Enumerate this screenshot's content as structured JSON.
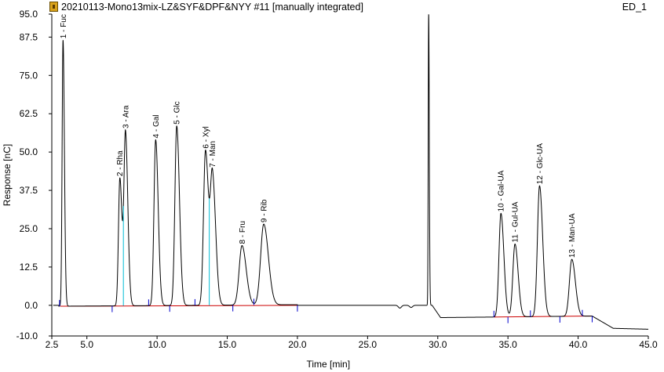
{
  "header": {
    "title": "20210113-Mono13mix-LZ&SYF&DPF&NYY #11 [manually integrated]",
    "channel": "ED_1"
  },
  "icons": {
    "app": "chromatogram-icon"
  },
  "colors": {
    "trace": "#000000",
    "baseline": "#cc0000",
    "marker": "#0000cc",
    "split": "#00bcd4"
  },
  "chart_data": {
    "type": "line",
    "xlabel": "Time [min]",
    "ylabel": "Response [nC]",
    "xlim": [
      2.5,
      45.0
    ],
    "ylim": [
      -10.0,
      95.0
    ],
    "x_ticks": [
      "2.5",
      "5.0",
      "10.0",
      "15.0",
      "20.0",
      "25.0",
      "30.0",
      "35.0",
      "40.0",
      "45.0"
    ],
    "x_tick_values": [
      2.5,
      5.0,
      10.0,
      15.0,
      20.0,
      25.0,
      30.0,
      35.0,
      40.0,
      45.0
    ],
    "y_ticks": [
      "95.0",
      "87.5",
      "75.0",
      "62.5",
      "50.0",
      "37.5",
      "25.0",
      "12.5",
      "0.0",
      "-10.0"
    ],
    "y_tick_values": [
      95.0,
      87.5,
      75.0,
      62.5,
      50.0,
      37.5,
      25.0,
      12.5,
      0.0,
      -10.0
    ],
    "peaks": [
      {
        "label": "1 - Fuc",
        "rt": 3.3,
        "height": 86.5,
        "width": 0.065
      },
      {
        "label": "2 - Rha",
        "rt": 7.35,
        "height": 41.5,
        "width": 0.1
      },
      {
        "label": "3 - Ara",
        "rt": 7.75,
        "height": 56.0,
        "width": 0.11
      },
      {
        "label": "4 - Gal",
        "rt": 9.9,
        "height": 54.0,
        "width": 0.12
      },
      {
        "label": "5 - Glc",
        "rt": 11.4,
        "height": 58.5,
        "width": 0.13
      },
      {
        "label": "6 - Xyl",
        "rt": 13.45,
        "height": 50.5,
        "width": 0.14
      },
      {
        "label": "7 - Man",
        "rt": 13.95,
        "height": 41.5,
        "width": 0.15
      },
      {
        "label": "8 - Fru",
        "rt": 16.05,
        "height": 19.5,
        "width": 0.2
      },
      {
        "label": "9 - Rib",
        "rt": 17.6,
        "height": 26.5,
        "width": 0.22
      },
      {
        "label": "10 - Gal-UA",
        "rt": 34.5,
        "height": 30.0,
        "width": 0.14
      },
      {
        "label": "11 - Gul-UA",
        "rt": 35.5,
        "height": 20.0,
        "width": 0.15
      },
      {
        "label": "12 - Glc-UA",
        "rt": 37.25,
        "height": 39.0,
        "width": 0.15
      },
      {
        "label": "13 - Man-UA",
        "rt": 39.55,
        "height": 15.0,
        "width": 0.17
      }
    ],
    "system_peak": {
      "rt": 29.35,
      "height": 95.0
    },
    "legend": "none",
    "grid": false
  }
}
